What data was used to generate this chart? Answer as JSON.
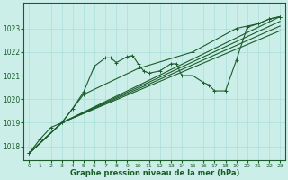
{
  "xlabel": "Graphe pression niveau de la mer (hPa)",
  "bg_color": "#cceee8",
  "grid_color": "#aaddda",
  "line_color": "#1a5c2a",
  "xlim": [
    -0.5,
    23.5
  ],
  "ylim": [
    1017.4,
    1024.1
  ],
  "xticks": [
    0,
    1,
    2,
    3,
    4,
    5,
    6,
    7,
    8,
    9,
    10,
    11,
    12,
    13,
    14,
    15,
    16,
    17,
    18,
    19,
    20,
    21,
    22,
    23
  ],
  "yticks": [
    1018,
    1019,
    1020,
    1021,
    1022,
    1023
  ],
  "line0_x": [
    0,
    1,
    2,
    3,
    4,
    5,
    6,
    7,
    7.5,
    8,
    9,
    9.5,
    10,
    10.5,
    11,
    12,
    13,
    13.5,
    14,
    15,
    16,
    16.5,
    17,
    18,
    19,
    20,
    21,
    22,
    23
  ],
  "line0_y": [
    1017.7,
    1018.3,
    1018.8,
    1019.0,
    1019.6,
    1020.3,
    1021.4,
    1021.75,
    1021.75,
    1021.55,
    1021.8,
    1021.85,
    1021.5,
    1021.2,
    1021.1,
    1021.2,
    1021.5,
    1021.5,
    1021.0,
    1021.0,
    1020.7,
    1020.6,
    1020.35,
    1020.35,
    1021.65,
    1023.05,
    1023.2,
    1023.4,
    1023.5
  ],
  "line1_x": [
    0,
    3,
    5,
    10,
    15,
    19,
    21,
    22,
    23
  ],
  "line1_y": [
    1017.7,
    1019.0,
    1020.2,
    1021.3,
    1022.0,
    1023.0,
    1023.2,
    1023.4,
    1023.5
  ],
  "line2_x": [
    0,
    3,
    23
  ],
  "line2_y": [
    1017.7,
    1019.0,
    1023.5
  ],
  "line3_x": [
    0,
    3,
    23
  ],
  "line3_y": [
    1017.7,
    1019.0,
    1023.3
  ],
  "line4_x": [
    0,
    3,
    23
  ],
  "line4_y": [
    1017.7,
    1019.0,
    1023.1
  ],
  "line5_x": [
    0,
    3,
    23
  ],
  "line5_y": [
    1017.7,
    1019.0,
    1022.9
  ]
}
